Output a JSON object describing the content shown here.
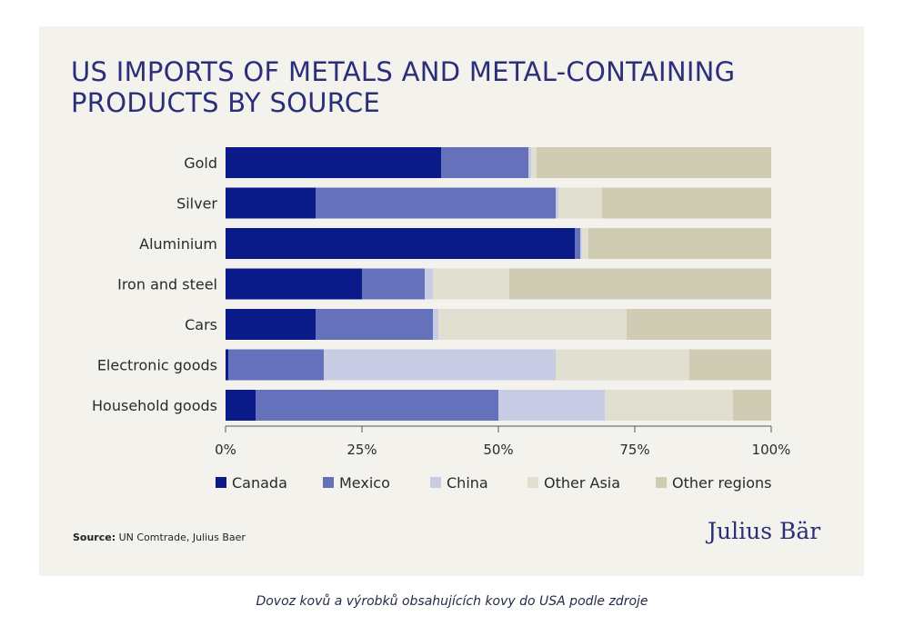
{
  "title": "US IMPORTS OF METALS AND METAL-CONTAINING PRODUCTS BY SOURCE",
  "source_label": "Source:",
  "source_text": "UN Comtrade, Julius Baer",
  "logo_text": "Julius Bär",
  "caption": "Dovoz kovů a výrobků obsahujících kovy do USA podle zdroje",
  "chart_data": {
    "type": "bar",
    "orientation": "horizontal",
    "stacked": true,
    "categories": [
      "Gold",
      "Silver",
      "Aluminium",
      "Iron and steel",
      "Cars",
      "Electronic goods",
      "Household goods"
    ],
    "series": [
      {
        "name": "Canada",
        "color": "#0a1a88",
        "values": [
          39.5,
          16.5,
          64.0,
          25.0,
          16.5,
          0.5,
          5.5
        ]
      },
      {
        "name": "Mexico",
        "color": "#6571ba",
        "values": [
          16.0,
          44.0,
          1.0,
          11.5,
          21.5,
          17.5,
          44.5
        ]
      },
      {
        "name": "China",
        "color": "#c8cbe4",
        "values": [
          0.5,
          0.5,
          0.3,
          1.5,
          1.0,
          42.5,
          19.5
        ]
      },
      {
        "name": "Other Asia",
        "color": "#e1dfd0",
        "values": [
          1.0,
          8.0,
          1.2,
          14.0,
          34.5,
          24.5,
          23.5
        ]
      },
      {
        "name": "Other regions",
        "color": "#d0ccb4",
        "values": [
          43.0,
          31.0,
          33.5,
          48.0,
          26.5,
          15.0,
          7.0
        ]
      }
    ],
    "ticks": [
      "0%",
      "25%",
      "50%",
      "75%",
      "100%"
    ],
    "xlim": [
      0,
      100
    ],
    "legend_position": "bottom"
  }
}
